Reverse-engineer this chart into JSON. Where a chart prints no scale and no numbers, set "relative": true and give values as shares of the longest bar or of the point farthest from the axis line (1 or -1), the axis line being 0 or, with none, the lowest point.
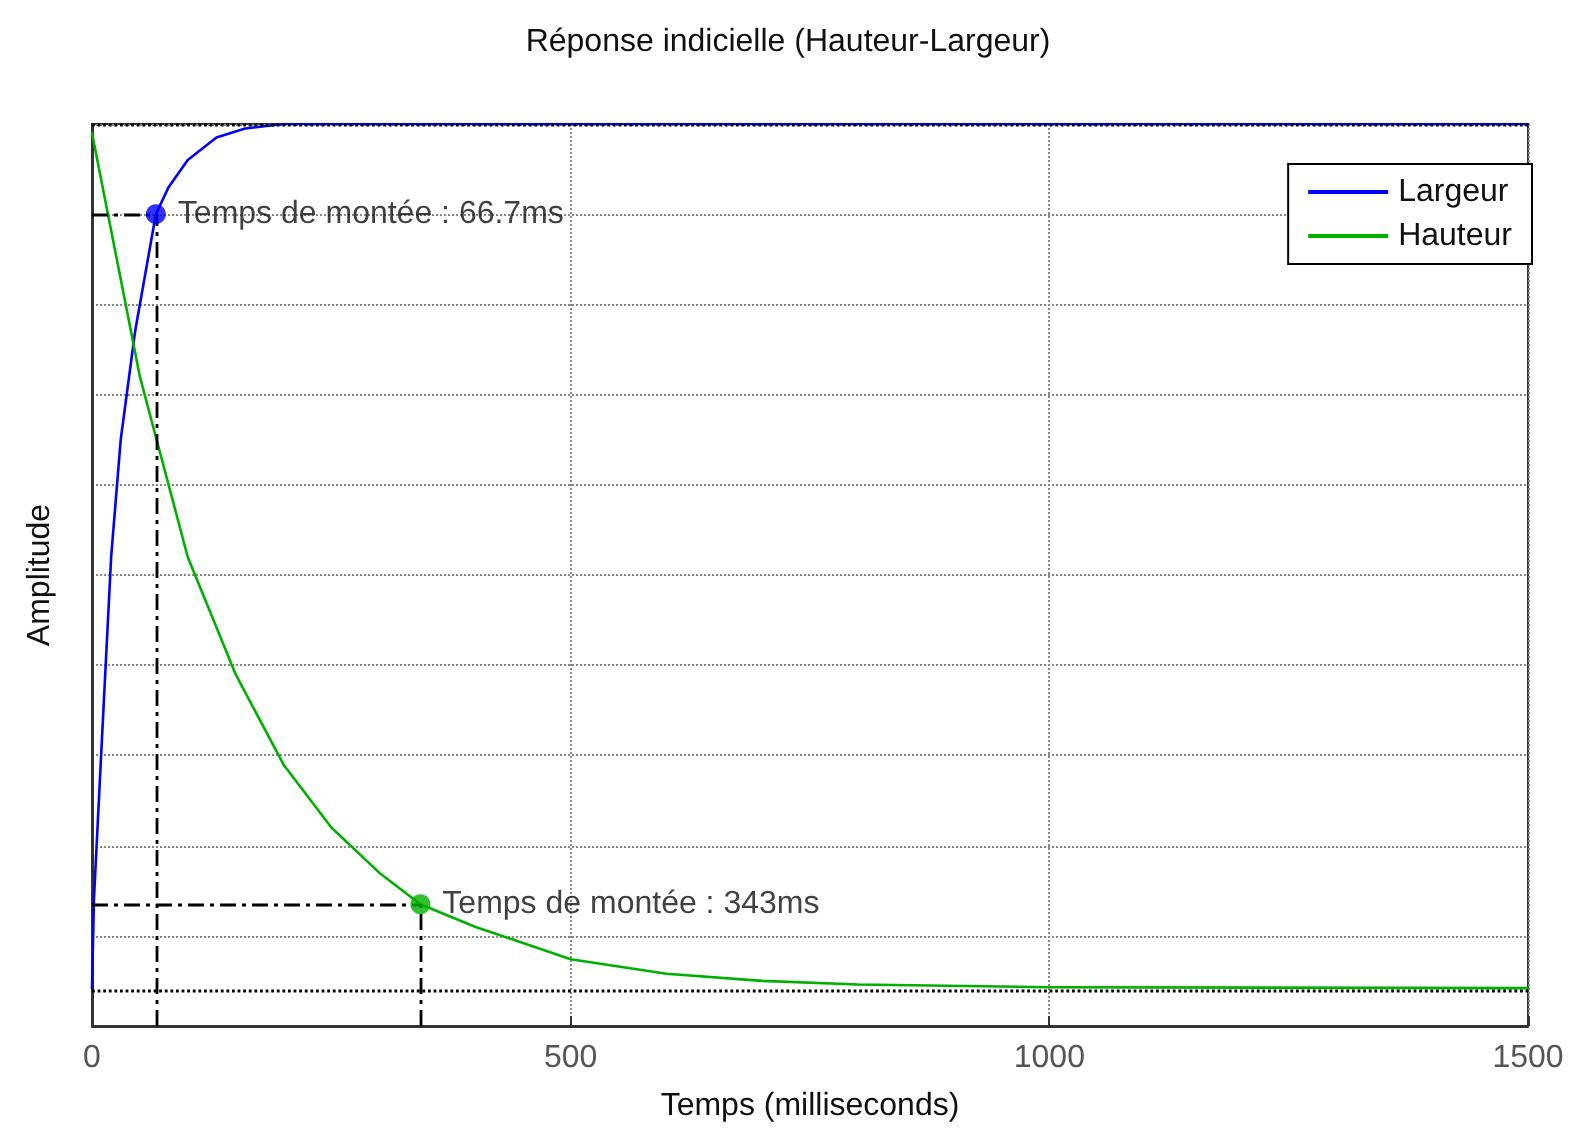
{
  "chart_data": {
    "type": "line",
    "title": "Réponse indicielle (Hauteur-Largeur)",
    "xlabel": "Temps (milliseconds)",
    "ylabel": "Amplitude",
    "relative": true,
    "xlim": [
      0,
      1500
    ],
    "xticks": [
      0,
      500,
      1000,
      1500
    ],
    "grid": true,
    "legend": "top right",
    "marker": "none",
    "line_style": "solid",
    "series": [
      {
        "name": "Largeur",
        "color": "#0000ff",
        "x": [
          0,
          2,
          10,
          20,
          30,
          45,
          66.7,
          80,
          100,
          130,
          160,
          200,
          1500
        ],
        "values": [
          0.042,
          0.14,
          0.31,
          0.52,
          0.65,
          0.77,
          0.9,
          0.93,
          0.96,
          0.985,
          0.995,
          1,
          1
        ]
      },
      {
        "name": "Hauteur",
        "color": "#00b000",
        "x": [
          0,
          50,
          100,
          150,
          200,
          250,
          300,
          343,
          400,
          500,
          600,
          700,
          800,
          1000,
          1500
        ],
        "values": [
          0.99,
          0.72,
          0.52,
          0.39,
          0.29,
          0.22,
          0.17,
          0.135,
          0.11,
          0.074,
          0.058,
          0.05,
          0.046,
          0.043,
          0.042
        ]
      }
    ],
    "ref_lines": [
      {
        "axis": "y",
        "value": 1,
        "line_style": "dotted"
      },
      {
        "axis": "y",
        "value": 0.042,
        "line_style": "dotted"
      },
      {
        "axis": "y",
        "value": 0.9,
        "line_style": "dashed"
      },
      {
        "axis": "x",
        "value": 66.7,
        "line_style": "dashed"
      },
      {
        "axis": "y",
        "value": 0.135,
        "line_style": "dashed"
      },
      {
        "axis": "x",
        "value": 343,
        "line_style": "dashed"
      }
    ],
    "annotations": [
      {
        "text": "Temps de montée : 66.7ms",
        "x": 66.7,
        "y": 0.9
      },
      {
        "text": "Temps de montée : 343ms",
        "x": 343,
        "y": 0.135
      }
    ]
  }
}
